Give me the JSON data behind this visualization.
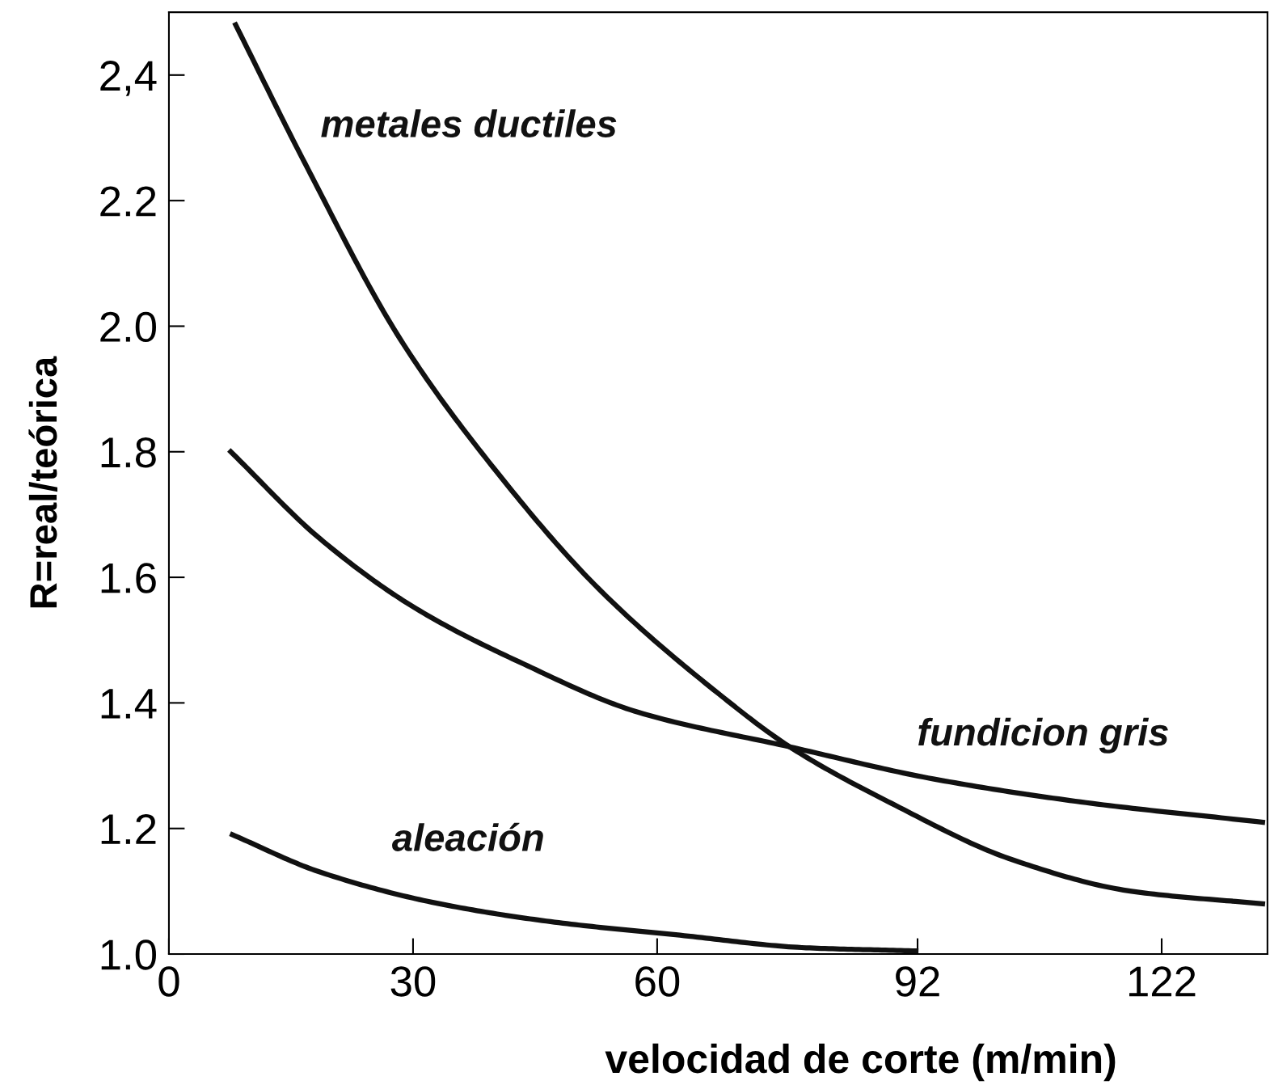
{
  "chart_data": {
    "type": "line",
    "xlabel": "velocidad de corte (m/min)",
    "ylabel": "R=real/teórica",
    "xlim": [
      0,
      135
    ],
    "ylim": [
      1.0,
      2.5
    ],
    "xticks": [
      0,
      30,
      60,
      92,
      122
    ],
    "yticks": [
      {
        "value": 1.0,
        "label": "1.0"
      },
      1.2,
      1.4,
      1.6,
      1.8,
      {
        "value": 2.0,
        "label": "2.0"
      },
      2.2,
      {
        "value": 2.4,
        "label": "2,4"
      }
    ],
    "grid": false,
    "legend": false,
    "marker": "none",
    "line_style": "solid",
    "series": [
      {
        "name": "metales ductiles",
        "color": "#111111",
        "x": [
          8.2,
          16.7,
          28.4,
          40.1,
          52.8,
          68.0,
          76.3,
          88.8,
          103.7,
          118.3,
          134.4
        ],
        "values": [
          2.48,
          2.26,
          1.98,
          1.771,
          1.582,
          1.41,
          1.33,
          1.24,
          1.15,
          1.1,
          1.08
        ]
      },
      {
        "name": "fundicion gris",
        "color": "#111111",
        "x": [
          7.6,
          18.7,
          30.4,
          43.1,
          57.7,
          76.3,
          93.9,
          113.4,
          134.4
        ],
        "values": [
          1.8,
          1.66,
          1.55,
          1.465,
          1.385,
          1.33,
          1.279,
          1.24,
          1.21
        ]
      },
      {
        "name": "aleación",
        "color": "#111111",
        "x": [
          7.8,
          18.7,
          33.3,
          47.9,
          62.8,
          78.3,
          91.8
        ],
        "values": [
          1.19,
          1.13,
          1.08,
          1.05,
          1.03,
          1.01,
          1.005
        ]
      }
    ]
  }
}
